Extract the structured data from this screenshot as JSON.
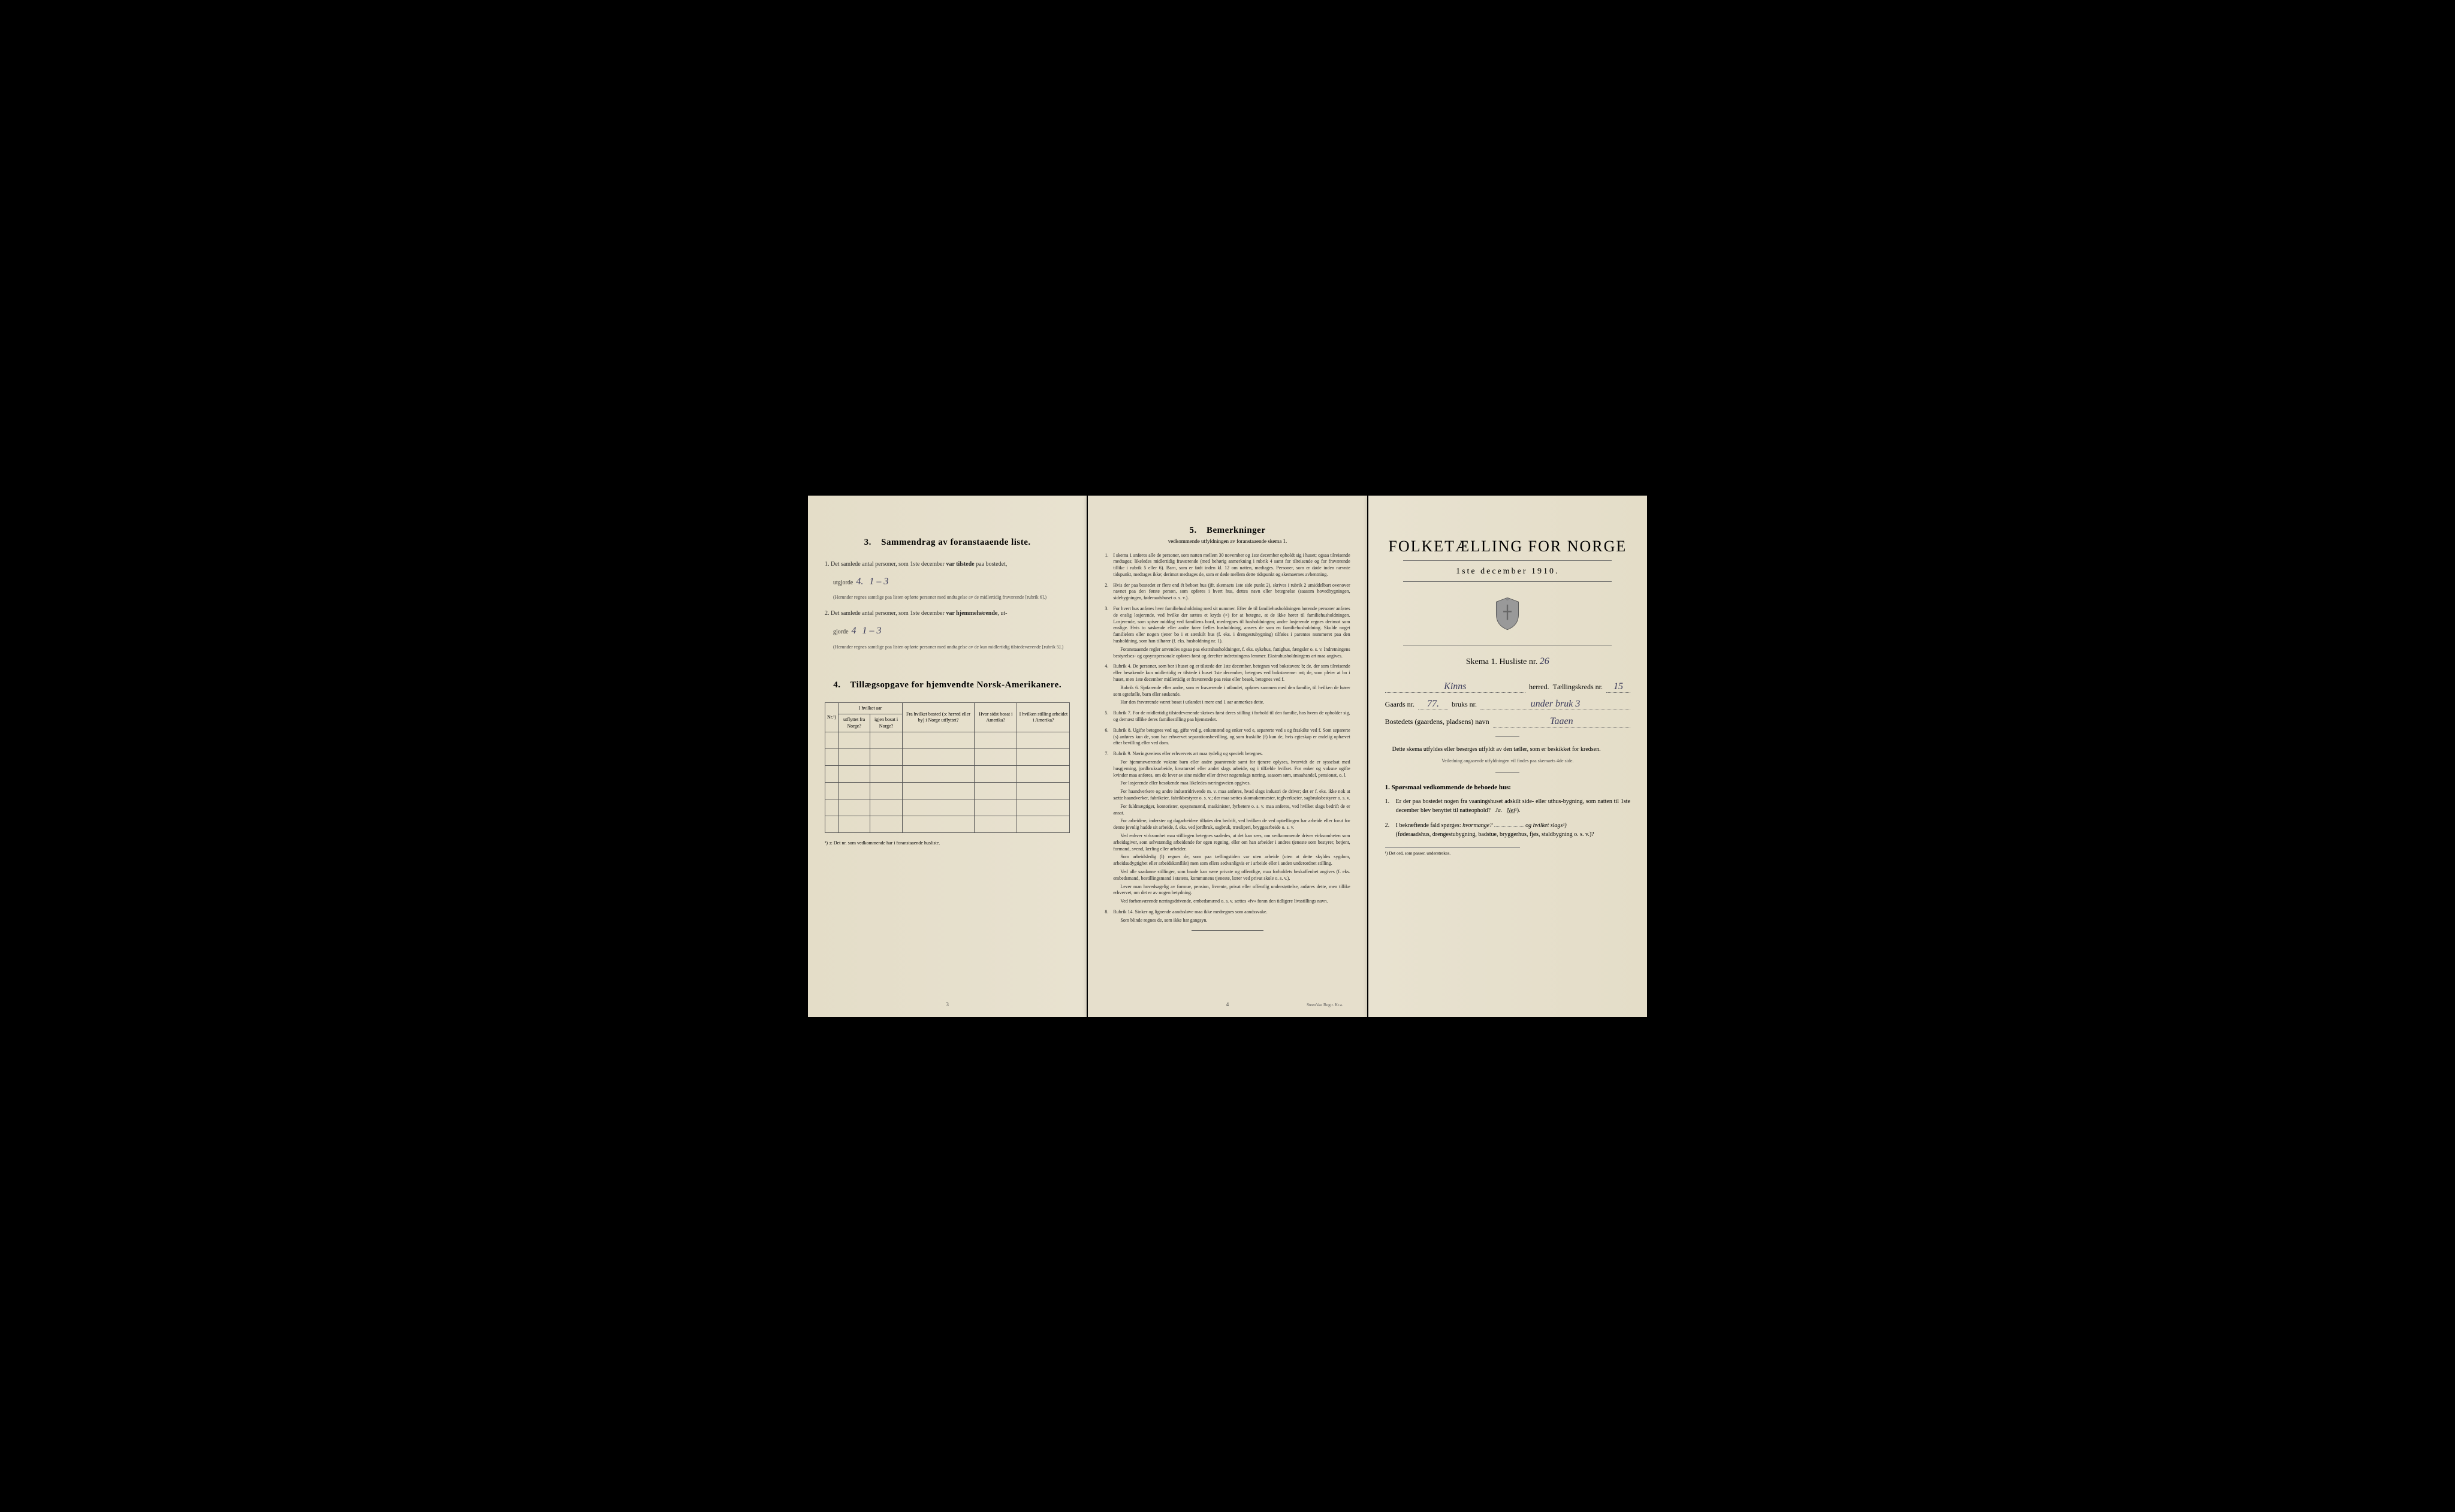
{
  "page1": {
    "section3": {
      "num": "3.",
      "title": "Sammendrag av foranstaaende liste.",
      "item1_pre": "1. Det samlede antal personer, som 1ste december",
      "item1_bold": "var tilstede",
      "item1_post": "paa bostedet,",
      "utgjorde": "utgjorde",
      "hand1a": "4.",
      "hand1b": "1 – 3",
      "note1": "(Herunder regnes samtlige paa listen opførte personer med undtagelse av de midlertidig fraværende [rubrik 6].)",
      "item2_pre": "2. Det samlede antal personer, som 1ste december",
      "item2_bold": "var hjemmehørende",
      "item2_post": ", ut-",
      "gjorde": "gjorde",
      "hand2a": "4",
      "hand2b": "1 – 3",
      "note2": "(Herunder regnes samtlige paa listen opførte personer med undtagelse av de kun midlertidig tilstedeværende [rubrik 5].)"
    },
    "section4": {
      "num": "4.",
      "title": "Tillægsopgave for hjemvendte Norsk-Amerikanere.",
      "headers": {
        "c1": "Nr.¹)",
        "c2a": "I hvilket aar",
        "c2b": "utflyttet fra Norge?",
        "c2c": "igjen bosat i Norge?",
        "c3": "Fra hvilket bosted (ɔ: herred eller by) i Norge utflyttet?",
        "c4": "Hvor sidst bosat i Amerika?",
        "c5": "I hvilken stilling arbeidet i Amerika?"
      },
      "footnote": "¹) ɔ: Det nr. som vedkommende har i foranstaaende husliste."
    },
    "page_num": "3"
  },
  "page2": {
    "num": "5.",
    "title": "Bemerkninger",
    "subtitle": "vedkommende utfyldningen av foranstaaende skema 1.",
    "items": [
      {
        "n": "1.",
        "txt": "I skema 1 anføres alle de personer, som natten mellem 30 november og 1ste december opholdt sig i huset; ogsaa tilreisende medtages; likeledes midlertidig fraværende (med behørig anmerkning i rubrik 4 samt for tilreisende og for fraværende tillike i rubrik 5 eller 6). Barn, som er født inden kl. 12 om natten, medtages. Personer, som er døde inden nævnte tidspunkt, medtages ikke; derimot medtages de, som er døde mellem dette tidspunkt og skemaernes avhentning."
      },
      {
        "n": "2.",
        "txt": "Hvis der paa bostedet er flere end ét beboet hus (jfr. skemaets 1ste side punkt 2), skrives i rubrik 2 umiddelbart ovenover navnet paa den første person, som opføres i hvert hus, dettes navn eller betegnelse (saasom hovedbygningen, sidebygningen, føderaadshuset o. s. v.)."
      },
      {
        "n": "3.",
        "txt": "For hvert hus anføres hver familiehusholdning med sit nummer. Efter de til familiehusholdningen hørende personer anføres de enslig losjerende, ved hvilke der sættes et kryds (×) for at betegne, at de ikke hører til familiehusholdningen. Losjerende, som spiser middag ved familiens bord, medregnes til husholdningen; andre losjerende regnes derimot som enslige. Hvis to søskende eller andre fører fælles husholdning, ansees de som en familiehusholdning. Skulde noget familielem eller nogen tjener bo i et særskilt hus (f. eks. i drengestubygning) tilføies i parentes nummeret paa den husholdning, som han tilhører (f. eks. husholdning nr. 1).",
        "sub": [
          "Foranstaaende regler anvendes ogsaa paa ekstrahusholdninger, f. eks. sykehus, fattighus, fængsler o. s. v. Indretningens bestyrelses- og opsynspersonale opføres først og derefter indretningens lemmer. Ekstrahusholdningens art maa angives."
        ]
      },
      {
        "n": "4.",
        "txt": "Rubrik 4. De personer, som bor i huset og er tilstede der 1ste december, betegnes ved bokstaven: b; de, der som tilreisende eller besøkende kun midlertidig er tilstede i huset 1ste december, betegnes ved bokstaverne: mt; de, som pleier at bo i huset, men 1ste december midlertidig er fraværende paa reise eller besøk, betegnes ved f.",
        "sub": [
          "Rubrik 6. Sjøfarende eller andre, som er fraværende i utlandet, opføres sammen med den familie, til hvilken de hører som egtefælle, barn eller søskende.",
          "Har den fraværende været bosat i utlandet i mere end 1 aar anmerkes dette."
        ]
      },
      {
        "n": "5.",
        "txt": "Rubrik 7. For de midlertidig tilstedeværende skrives først deres stilling i forhold til den familie, hos hvem de opholder sig, og dernæst tillike deres familiestilling paa hjemstedet."
      },
      {
        "n": "6.",
        "txt": "Rubrik 8. Ugifte betegnes ved ug, gifte ved g, enkemænd og enker ved e, separerte ved s og fraskilte ved f. Som separerte (s) anføres kun de, som har erhvervet separationsbevilling, og som fraskilte (f) kun de, hvis egteskap er endelig ophævet efter bevilling eller ved dom."
      },
      {
        "n": "7.",
        "txt": "Rubrik 9. Næringsveiens eller erhvervets art maa tydelig og specielt betegnes.",
        "sub": [
          "For hjemmeværende voksne barn eller andre paarørende samt for tjenere oplyses, hvorvidt de er sysselsat med husgjerning, jordbruksarbeide, kreaturstel eller andet slags arbeide, og i tilfælde hvilket. For enker og voksne ugifte kvinder maa anføres, om de lever av sine midler eller driver nogenslags næring, saasom søm, smaahandel, pensionat, o. l.",
          "For losjerende eller besøkende maa likeledes næringsveien opgives.",
          "For haandverkere og andre industridrivende m. v. maa anføres, hvad slags industri de driver; det er f. eks. ikke nok at sætte haandverker, fabrikeier, fabrikbestyrer o. s. v.; der maa sættes skomakermester, teglverkseier, sagbruksbestyrer o. s. v.",
          "For fuldmægtiger, kontorister, opsynsmænd, maskinister, fyrbøtere o. s. v. maa anføres, ved hvilket slags bedrift de er ansat.",
          "For arbeidere, inderster og dagarbeidere tilføies den bedrift, ved hvilken de ved optællingen har arbeide eller forut for denne jevnlig hadde sit arbeide, f. eks. ved jordbruk, sagbruk, træsliperi, bryggearbeide o. s. v.",
          "Ved enhver virksomhet maa stillingen betegnes saaledes, at det kan sees, om vedkommende driver virksomheten som arbeidsgiver, som selvstændig arbeidende for egen regning, eller om han arbeider i andres tjeneste som bestyrer, betjent, formand, svend, lærling eller arbeider.",
          "Som arbeidsledig (l) regnes de, som paa tællingstiden var uten arbeide (uten at dette skyldes sygdom, arbeidsudygtighet eller arbeidskonflikt) men som ellers sedvanligvis er i arbeide eller i anden underordnet stilling.",
          "Ved alle saadanne stillinger, som baade kan være private og offentlige, maa forholdets beskaffenhet angives (f. eks. embedsmand, bestillingsmand i statens, kommunens tjeneste, lærer ved privat skole o. s. v.).",
          "Lever man hovedsagelig av formue, pension, livrente, privat eller offentlig understøttelse, anføres dette, men tillike erhvervet, om det er av nogen betydning.",
          "Ved forhenværende næringsdrivende, embedsmænd o. s. v. sættes «fv» foran den tidligere livsstillings navn."
        ]
      },
      {
        "n": "8.",
        "txt": "Rubrik 14. Sinker og lignende aandssløve maa ikke medregnes som aandssvake.",
        "sub": [
          "Som blinde regnes de, som ikke har gangsyn."
        ]
      }
    ],
    "page_num": "4",
    "printer": "Steen'ske Bogtr. Kr.a."
  },
  "page3": {
    "main_title": "FOLKETÆLLING FOR NORGE",
    "date": "1ste december 1910.",
    "skema_label": "Skema 1.   Husliste nr.",
    "skema_val": "26",
    "herred_val": "Kinns",
    "herred_label": "herred.",
    "kreds_label": "Tællingskreds nr.",
    "kreds_val": "15",
    "gaards_label": "Gaards nr.",
    "gaards_val": "77.",
    "bruks_label": "bruks nr.",
    "bruks_val": "under bruk 3",
    "bosted_label": "Bostedets (gaardens, pladsens) navn",
    "bosted_val": "Taaen",
    "instr1": "Dette skema utfyldes eller besørges utfyldt av den tæller, som er beskikket for kredsen.",
    "instr2": "Veiledning angaaende utfyldningen vil findes paa skemaets 4de side.",
    "q_heading_num": "1.",
    "q_heading": "Spørsmaal vedkommende de beboede hus:",
    "q1_n": "1.",
    "q1": "Er der paa bostedet nogen fra vaaningshuset adskilt side- eller uthus-bygning, som natten til 1ste december blev benyttet til natteophold?",
    "q1_ja": "Ja.",
    "q1_nei": "Nei",
    "q1_sup": "¹).",
    "q2_n": "2.",
    "q2": "I bekræftende fald spørges:",
    "q2_i1": "hvormange?",
    "q2_og": "og",
    "q2_i2": "hvilket slags¹)",
    "q2_paren": "(føderaadshus, drengestubygning, badstue, bryggerhus, fjøs, staldbygning o. s. v.)?",
    "footnote": "¹) Det ord, som passer, understrekes."
  },
  "colors": {
    "paper": "#e8e2d0",
    "ink": "#2a2a2a",
    "hand": "#3a3a5a"
  }
}
